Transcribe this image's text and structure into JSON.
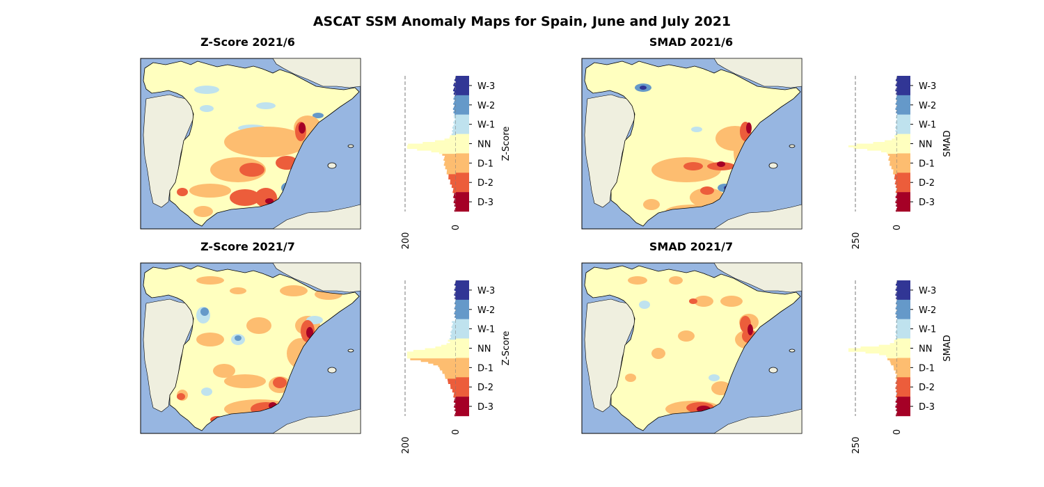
{
  "figure": {
    "title": "ASCAT SSM Anomaly Maps for Spain, June and July 2021"
  },
  "colors": {
    "ocean": "#97b6e1",
    "land": "#efefdf",
    "W-3": "#313695",
    "W-2": "#6599c9",
    "W-1": "#bfe2ee",
    "NN": "#ffffbf",
    "D-1": "#fdbd70",
    "D-2": "#ec5d3b",
    "D-3": "#a50026"
  },
  "category_labels": [
    "W-3",
    "W-2",
    "W-1",
    "NN",
    "D-1",
    "D-2",
    "D-3"
  ],
  "panels": [
    {
      "title": "Z-Score 2021/6",
      "colorbar_label": "Z-Score",
      "hist_max_tick": "200",
      "hist_zero_tick": "0",
      "histogram_shape": "zscore_jun"
    },
    {
      "title": "SMAD 2021/6",
      "colorbar_label": "SMAD",
      "hist_max_tick": "250",
      "hist_zero_tick": "0",
      "histogram_shape": "smad_jun"
    },
    {
      "title": "Z-Score 2021/7",
      "colorbar_label": "Z-Score",
      "hist_max_tick": "200",
      "hist_zero_tick": "0",
      "histogram_shape": "zscore_jul"
    },
    {
      "title": "SMAD 2021/7",
      "colorbar_label": "SMAD",
      "hist_max_tick": "250",
      "hist_zero_tick": "0",
      "histogram_shape": "smad_jul"
    }
  ]
}
